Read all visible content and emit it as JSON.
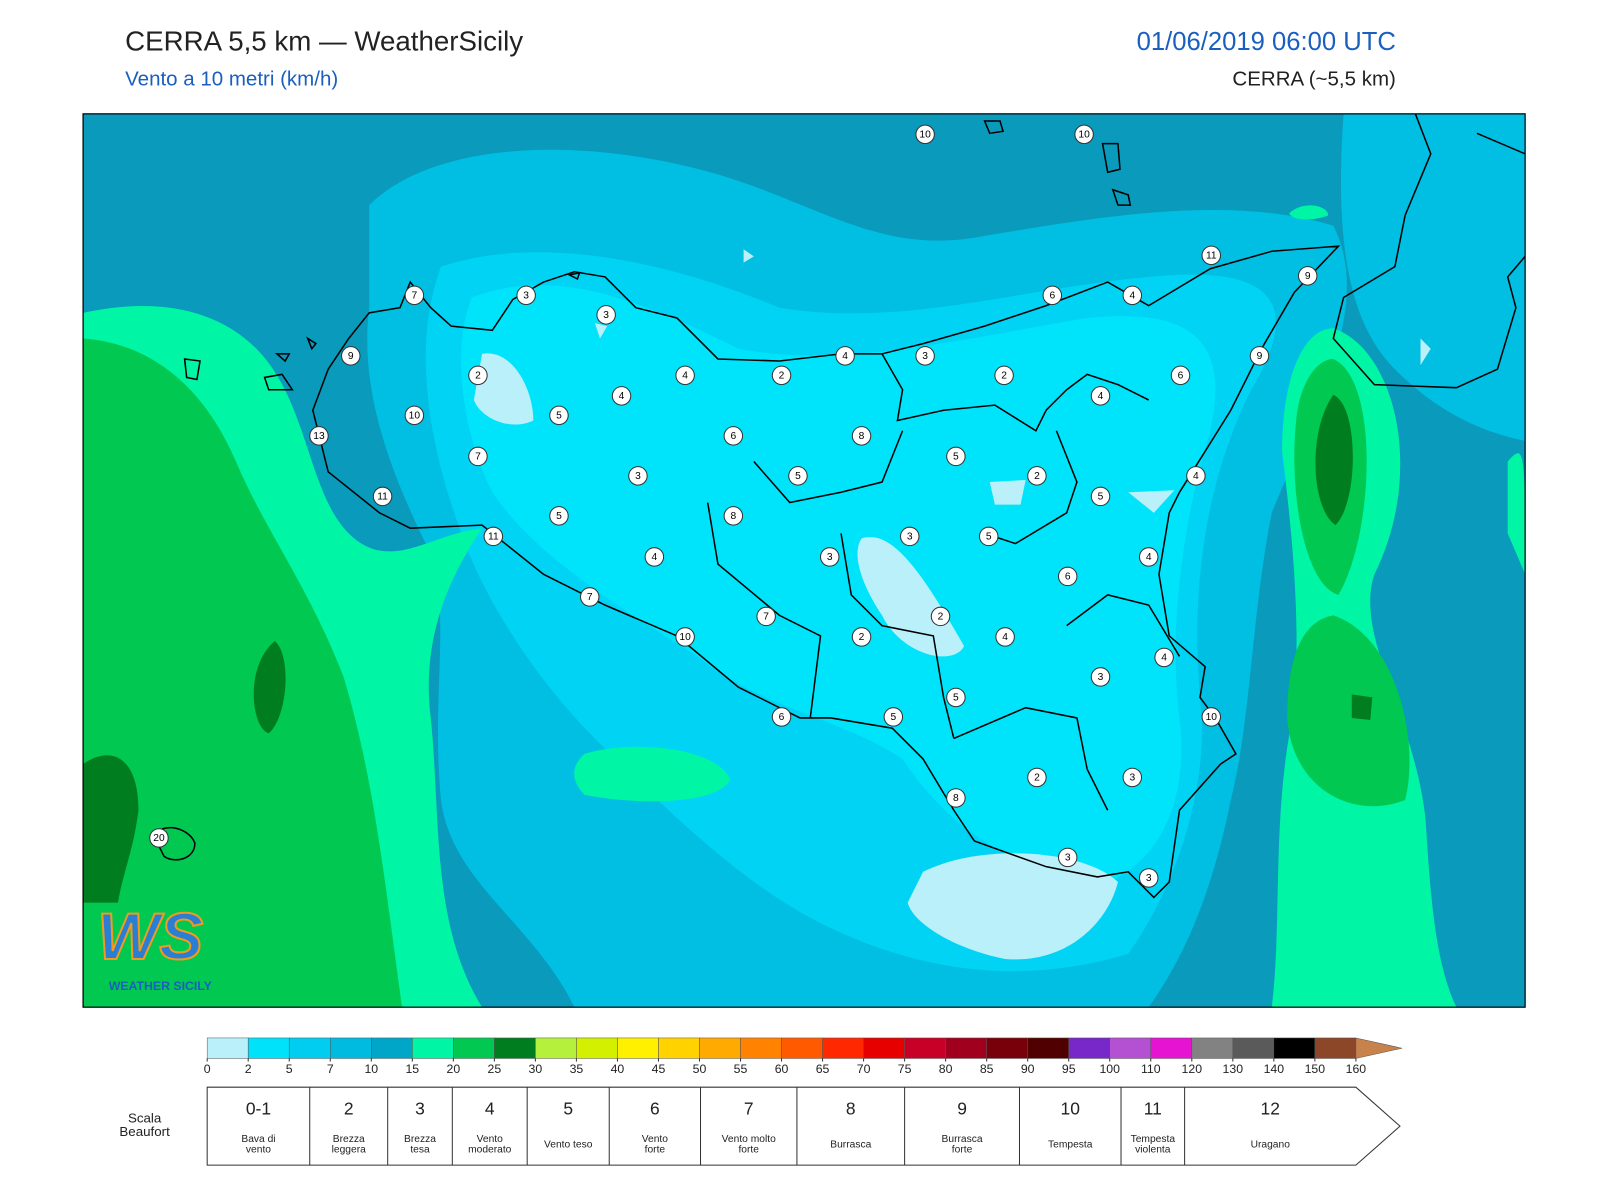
{
  "header": {
    "title": "CERRA 5,5 km — WeatherSicily",
    "subtitle": "Vento a 10 metri (km/h)",
    "datetime": "01/06/2019 06:00 UTC",
    "model": "CERRA (~5,5 km)"
  },
  "stations": [
    10,
    10,
    11,
    9,
    6,
    4,
    7,
    3,
    3,
    9,
    4,
    3,
    2,
    4,
    2,
    2,
    6,
    9,
    4,
    4,
    5,
    10,
    13,
    6,
    8,
    5,
    7,
    3,
    5,
    2,
    4,
    11,
    5,
    8,
    5,
    11,
    3,
    5,
    4,
    3,
    4,
    6,
    7,
    2,
    7,
    10,
    2,
    4,
    4,
    3,
    5,
    6,
    5,
    10,
    2,
    3,
    8,
    20,
    3,
    3
  ],
  "logo": {
    "mark": "WS",
    "name": "WEATHER SICILY"
  },
  "colorbar": {
    "ticks": [
      0,
      2,
      5,
      7,
      10,
      15,
      20,
      25,
      30,
      35,
      40,
      45,
      50,
      55,
      60,
      65,
      70,
      75,
      80,
      85,
      90,
      95,
      100,
      110,
      120,
      130,
      140,
      150,
      160
    ],
    "colors": [
      "#b9f0fa",
      "#00e1fa",
      "#00cdf0",
      "#00bbe0",
      "#00a6c8",
      "#00f5a5",
      "#00c850",
      "#007d1e",
      "#b4f03c",
      "#d2f000",
      "#fff000",
      "#ffd200",
      "#ffaa00",
      "#ff8200",
      "#ff5a00",
      "#ff2800",
      "#e60000",
      "#c80028",
      "#a0001e",
      "#78000a",
      "#500000",
      "#7828c8",
      "#b450d2",
      "#e614d2",
      "#828282",
      "#5a5a5a",
      "#000000",
      "#8c4628",
      "#c8824b"
    ]
  },
  "beaufort": {
    "label": [
      "Scala",
      "Beaufort"
    ],
    "levels": [
      {
        "force": "0-1",
        "desc": [
          "Bava di",
          "vento"
        ]
      },
      {
        "force": "2",
        "desc": [
          "Brezza",
          "leggera"
        ]
      },
      {
        "force": "3",
        "desc": [
          "Brezza",
          "tesa"
        ]
      },
      {
        "force": "4",
        "desc": [
          "Vento",
          "moderato"
        ]
      },
      {
        "force": "5",
        "desc": [
          "Vento teso"
        ]
      },
      {
        "force": "6",
        "desc": [
          "Vento",
          "forte"
        ]
      },
      {
        "force": "7",
        "desc": [
          "Vento molto",
          "forte"
        ]
      },
      {
        "force": "8",
        "desc": [
          "Burrasca"
        ]
      },
      {
        "force": "9",
        "desc": [
          "Burrasca",
          "forte"
        ]
      },
      {
        "force": "10",
        "desc": [
          "Tempesta"
        ]
      },
      {
        "force": "11",
        "desc": [
          "Tempesta",
          "violenta"
        ]
      },
      {
        "force": "12",
        "desc": [
          "Uragano"
        ]
      }
    ]
  }
}
